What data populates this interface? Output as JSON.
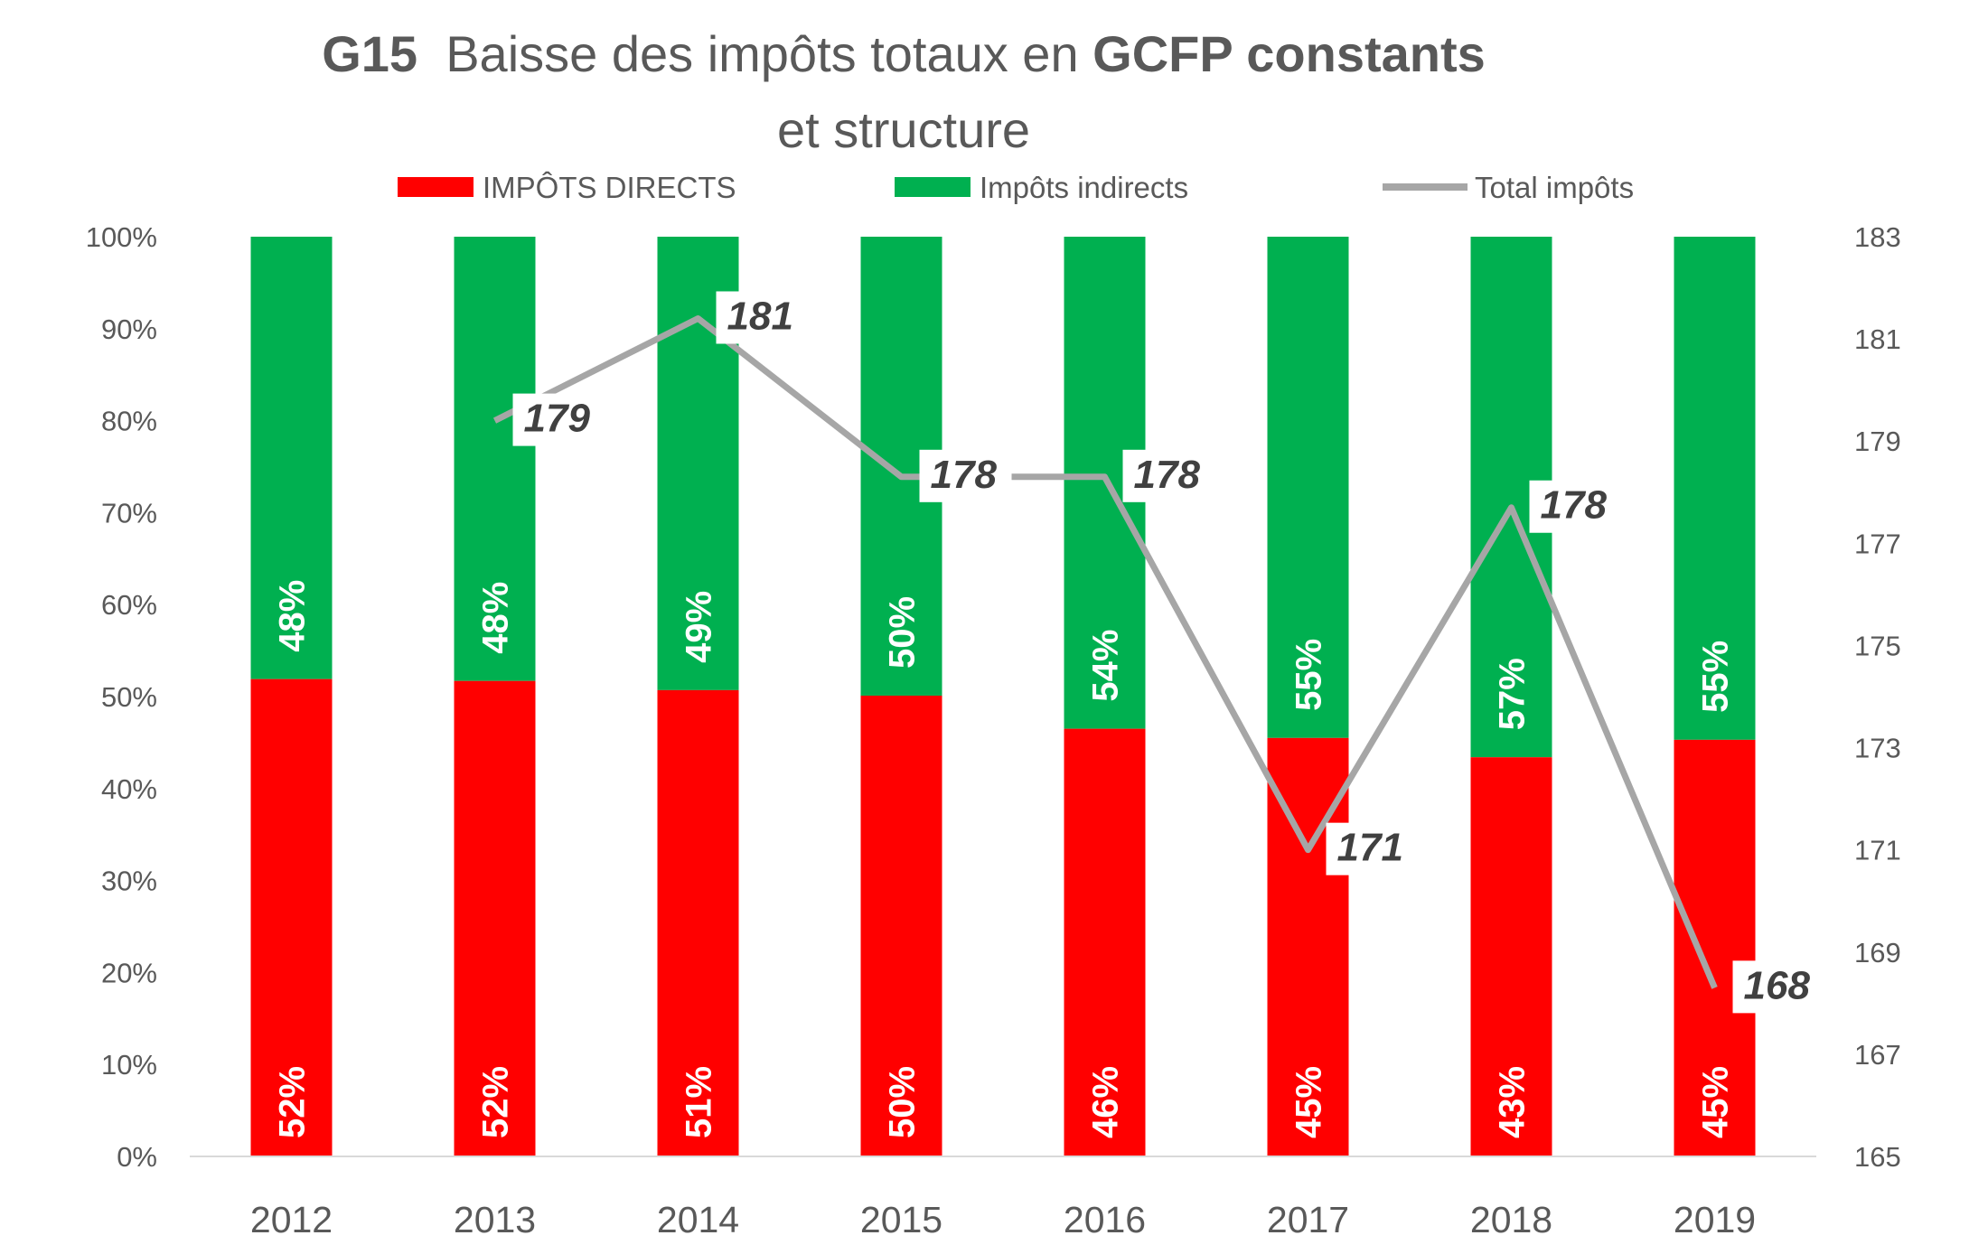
{
  "title": {
    "code": "G15",
    "text": "Baisse des impôts totaux en",
    "bold": "GCFP constants",
    "line2": "et structure"
  },
  "chart_data": {
    "type": "stacked-bar+line",
    "categories": [
      "2012",
      "2013",
      "2014",
      "2015",
      "2016",
      "2017",
      "2018",
      "2019"
    ],
    "series": [
      {
        "name": "IMPÔTS DIRECTS",
        "type": "bar",
        "axis": "left",
        "color": "#ff0000",
        "values": [
          52,
          52,
          51,
          50,
          46,
          45,
          43,
          45
        ],
        "labels": [
          "52%",
          "52%",
          "51%",
          "50%",
          "46%",
          "45%",
          "43%",
          "45%"
        ],
        "heights": [
          51.9,
          51.7,
          50.7,
          50.1,
          46.5,
          45.5,
          43.4,
          45.3
        ]
      },
      {
        "name": "Impôts indirects",
        "type": "bar",
        "axis": "left",
        "color": "#00b050",
        "values": [
          48,
          48,
          49,
          50,
          54,
          55,
          57,
          55
        ],
        "labels": [
          "48%",
          "48%",
          "49%",
          "50%",
          "54%",
          "55%",
          "57%",
          "55%"
        ]
      },
      {
        "name": "Total impôts",
        "type": "line",
        "axis": "right",
        "color": "#a6a6a6",
        "values": [
          null,
          179.4,
          181.4,
          178.3,
          178.3,
          171.0,
          177.7,
          168.3
        ],
        "labels": [
          "",
          "179",
          "181",
          "178",
          "178",
          "171",
          "178",
          "168"
        ]
      }
    ],
    "y_left": {
      "range": [
        0,
        100
      ],
      "ticks": [
        "0%",
        "10%",
        "20%",
        "30%",
        "40%",
        "50%",
        "60%",
        "70%",
        "80%",
        "90%",
        "100%"
      ]
    },
    "y_right": {
      "range": [
        165,
        183
      ],
      "ticks": [
        "165",
        "167",
        "169",
        "171",
        "173",
        "175",
        "177",
        "179",
        "181",
        "183"
      ]
    },
    "legend": {
      "placement": "top",
      "items": [
        "IMPÔTS DIRECTS",
        "Impôts indirects",
        "Total impôts"
      ]
    },
    "grid": false
  }
}
